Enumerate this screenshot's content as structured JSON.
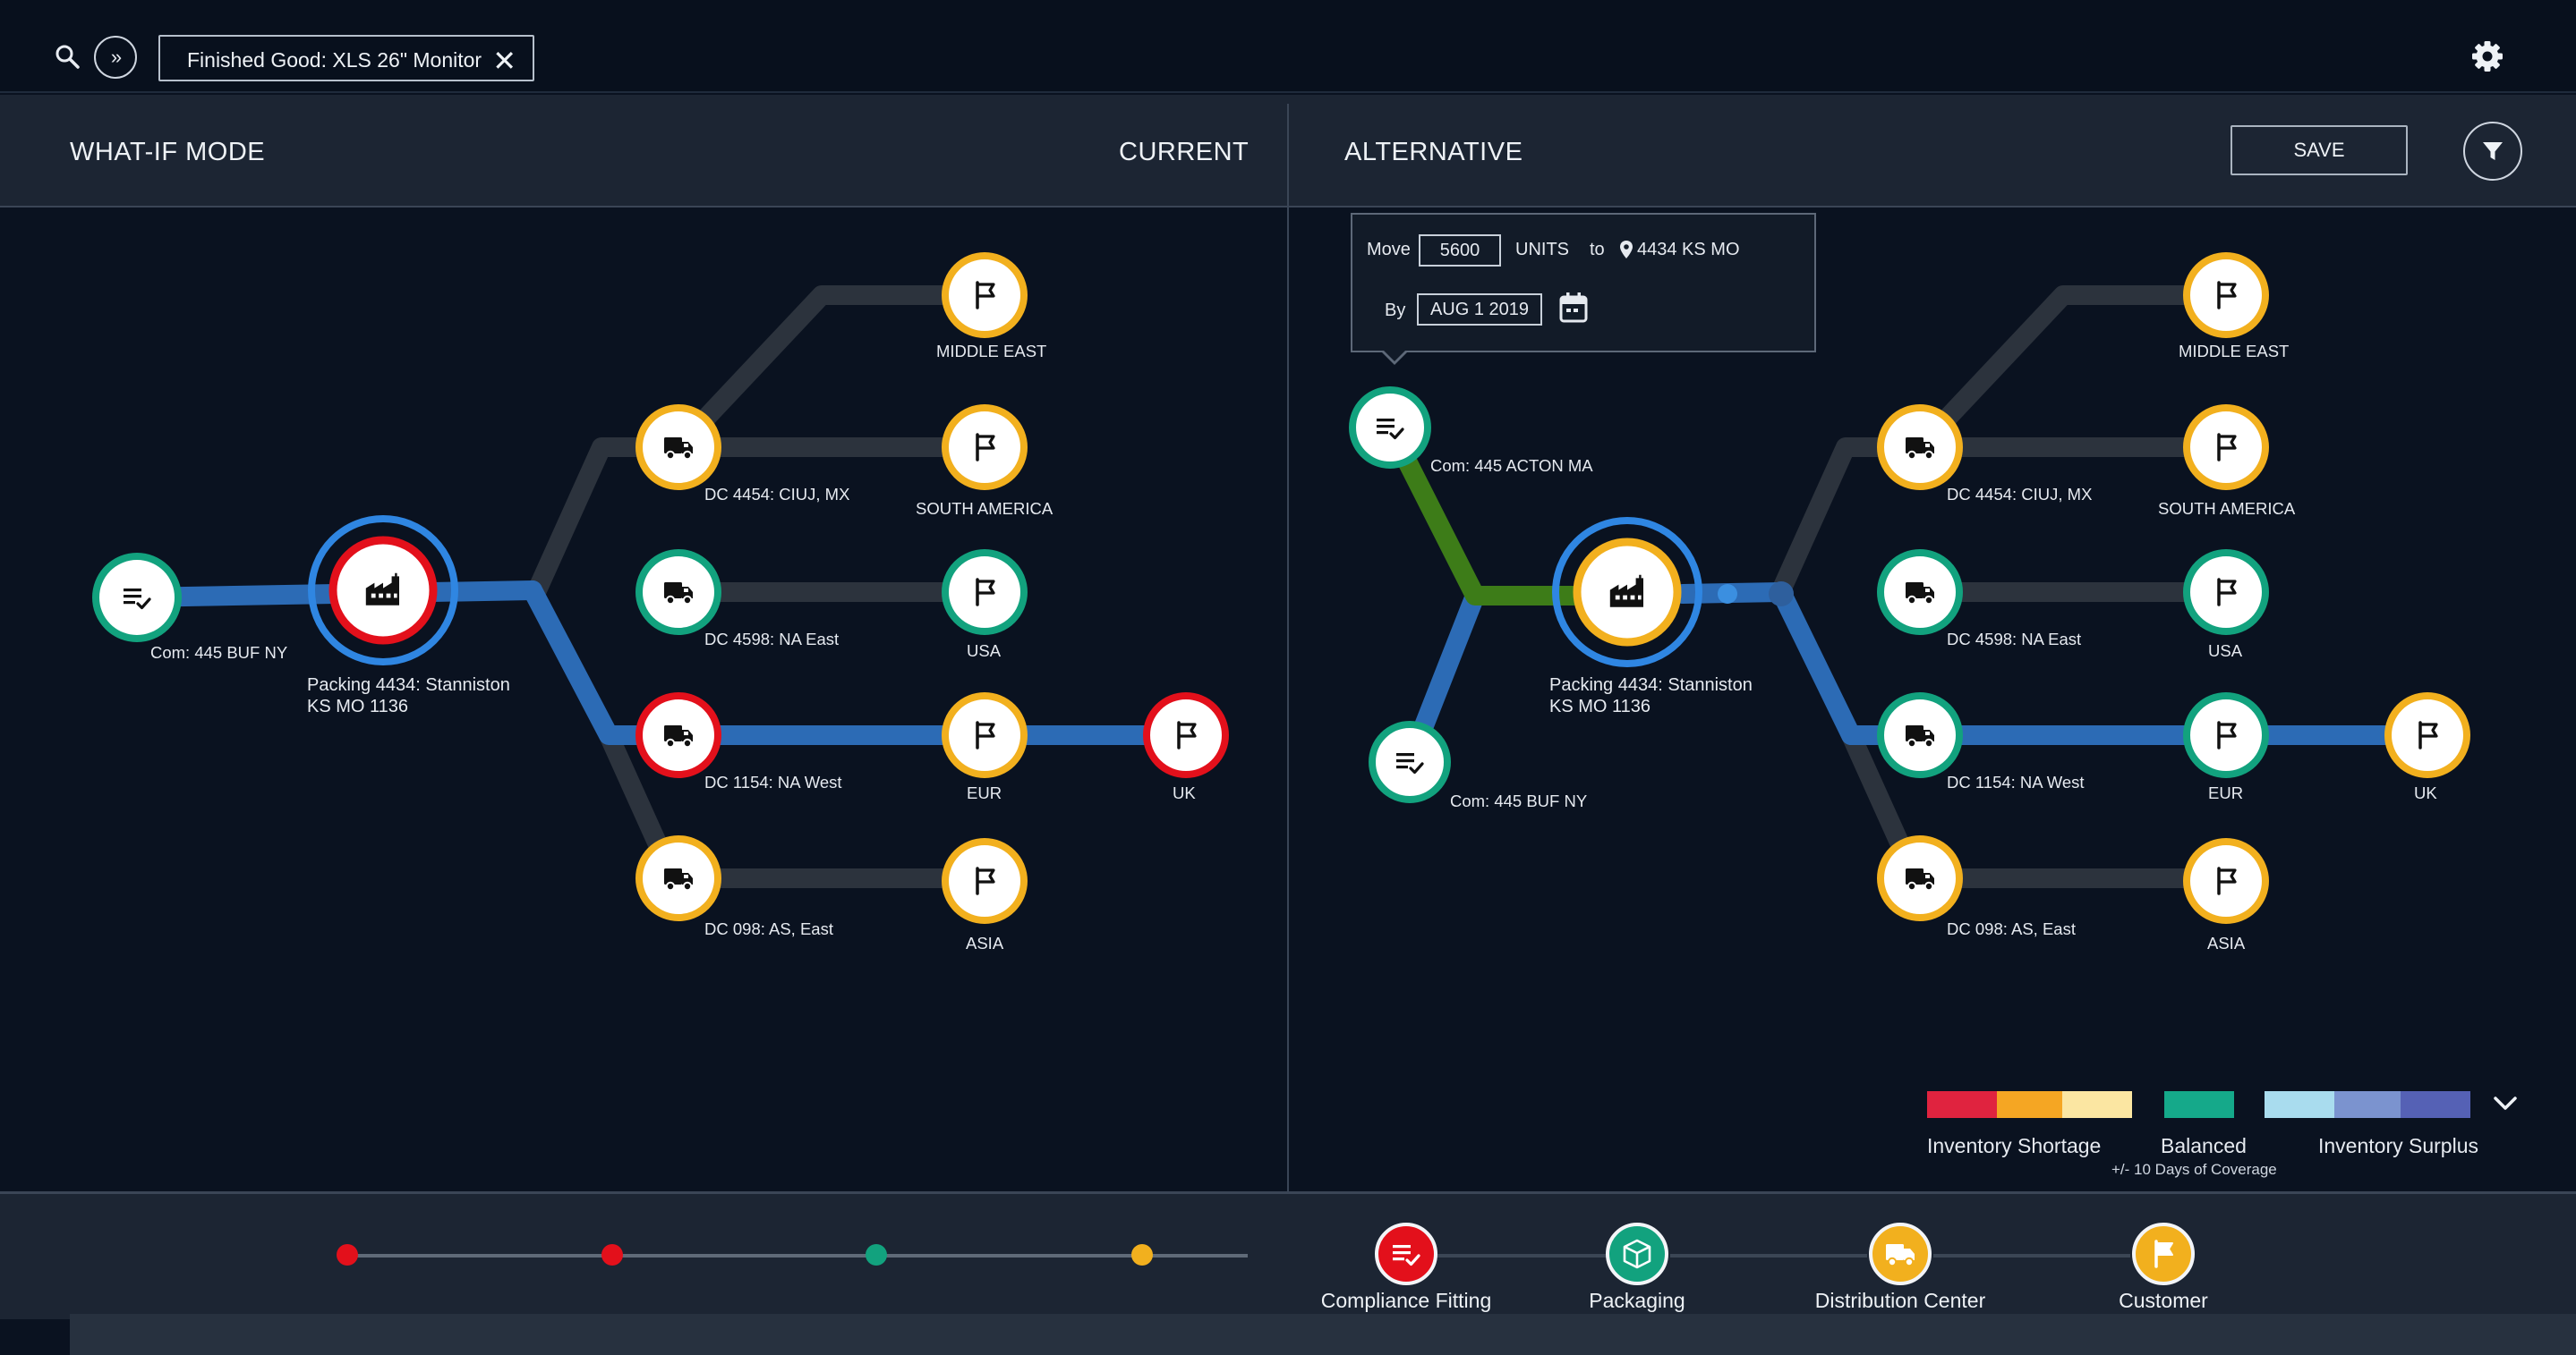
{
  "topbar": {
    "filter_chip": "Finished Good: XLS 26\" Monitor",
    "close_glyph": "✕",
    "forward_glyph": "»",
    "icons": [
      "search-icon",
      "fast-forward-icon",
      "gear-icon"
    ]
  },
  "modebar": {
    "mode_label": "WHAT-IF MODE",
    "current_label": "CURRENT",
    "alternative_label": "ALTERNATIVE",
    "save_label": "SAVE"
  },
  "popover": {
    "move_label": "Move",
    "units_value": "5600",
    "units_label": "UNITS",
    "to_label": "to",
    "destination": "4434 KS MO",
    "by_label": "By",
    "date_value": "AUG 1 2019"
  },
  "current": {
    "nodes": {
      "com": "Com: 445 BUF NY",
      "factory_1": "Packing 4434: Stanniston",
      "factory_2": "KS MO 1136",
      "dc1": "DC 4454: CIUJ, MX",
      "dc2": "DC 4598: NA East",
      "dc3": "DC 1154: NA West",
      "dc4": "DC 098: AS, East",
      "c1": "MIDDLE EAST",
      "c2": "SOUTH AMERICA",
      "c3": "USA",
      "c4": "EUR",
      "c5": "UK",
      "c6": "ASIA"
    }
  },
  "alternative": {
    "nodes": {
      "com_a": "Com: 445 ACTON MA",
      "com_b": "Com: 445 BUF NY",
      "factory_1": "Packing 4434: Stanniston",
      "factory_2": "KS MO 1136",
      "dc1": "DC 4454: CIUJ, MX",
      "dc2": "DC 4598: NA East",
      "dc3": "DC 1154: NA West",
      "dc4": "DC 098: AS, East",
      "c1": "MIDDLE EAST",
      "c2": "SOUTH AMERICA",
      "c3": "USA",
      "c4": "EUR",
      "c5": "UK",
      "c6": "ASIA"
    }
  },
  "legend": {
    "shortage": "Inventory Shortage",
    "balanced": "Balanced",
    "balanced_sub": "+/- 10 Days of Coverage",
    "surplus": "Inventory Surplus",
    "colors": {
      "shortage": [
        "#e0233f",
        "#f5a623",
        "#fbe6a2"
      ],
      "balanced": [
        "#15a98a"
      ],
      "surplus": [
        "#a9dcee",
        "#7b93cf",
        "#5561b5"
      ]
    }
  },
  "bottom_legend": {
    "compliance": "Compliance Fitting",
    "packaging": "Packaging",
    "distribution": "Distribution Center",
    "customer": "Customer"
  },
  "colors": {
    "red": "#e3101b",
    "green": "#12a27e",
    "yellow": "#f2b01e",
    "blue_ring": "#2f86e2",
    "path_blue": "#2c6bb5",
    "path_green": "#3d7c18",
    "path_grey": "#2c333d"
  }
}
